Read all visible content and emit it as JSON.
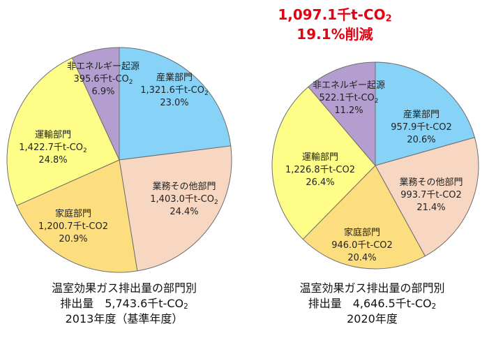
{
  "headline": {
    "reduction_amount": "1,097.1千t-CO",
    "reduction_sub": "2",
    "reduction_percent": "19.1%削減"
  },
  "chart_data": [
    {
      "type": "pie",
      "caption_line1": "温室効果ガス排出量の部門別",
      "caption_line2": "排出量　5,743.6千t-CO",
      "caption_line2_sub": "2",
      "caption_line3": "2013年度（基準年度）",
      "slices": [
        {
          "name": "産業部門",
          "value": 1321.6,
          "value_label": "1,321.6千t-CO",
          "value_sub": "2",
          "percent": 23.0,
          "percent_label": "23.0%",
          "color": "#86d3f7"
        },
        {
          "name": "業務その他部門",
          "value": 1403.0,
          "value_label": "1,403.0千t-CO",
          "value_sub": "2",
          "percent": 24.4,
          "percent_label": "24.4%",
          "color": "#f7d6c2"
        },
        {
          "name": "家庭部門",
          "value": 1200.7,
          "value_label": "1,200.7千t-CO2",
          "value_sub": "",
          "percent": 20.9,
          "percent_label": "20.9%",
          "color": "#fdde7e"
        },
        {
          "name": "運輸部門",
          "value": 1422.7,
          "value_label": "1,422.7千t-CO",
          "value_sub": "2",
          "percent": 24.8,
          "percent_label": "24.8%",
          "color": "#fdfd88"
        },
        {
          "name": "非エネルギー起源",
          "value": 395.6,
          "value_label": "395.6千t-CO",
          "value_sub": "2",
          "percent": 6.9,
          "percent_label": "6.9%",
          "color": "#b49ed0"
        }
      ]
    },
    {
      "type": "pie",
      "caption_line1": "温室効果ガス排出量の部門別",
      "caption_line2": "排出量　4,646.5千t-CO",
      "caption_line2_sub": "2",
      "caption_line3": "2020年度",
      "slices": [
        {
          "name": "産業部門",
          "value": 957.9,
          "value_label": "957.9千t-CO2",
          "value_sub": "",
          "percent": 20.6,
          "percent_label": "20.6%",
          "color": "#86d3f7"
        },
        {
          "name": "業務その他部門",
          "value": 993.7,
          "value_label": "993.7千t-CO2",
          "value_sub": "",
          "percent": 21.4,
          "percent_label": "21.4%",
          "color": "#f7d6c2"
        },
        {
          "name": "家庭部門",
          "value": 946.0,
          "value_label": "946.0千t-CO2",
          "value_sub": "",
          "percent": 20.4,
          "percent_label": "20.4%",
          "color": "#fdde7e"
        },
        {
          "name": "運輸部門",
          "value": 1226.8,
          "value_label": "1,226.8千t-CO2",
          "value_sub": "",
          "percent": 26.4,
          "percent_label": "26.4%",
          "color": "#fdfd88"
        },
        {
          "name": "非エネルギー起源",
          "value": 522.1,
          "value_label": "522.1千t-CO",
          "value_sub": "2",
          "percent": 11.2,
          "percent_label": "11.2%",
          "color": "#b49ed0"
        }
      ]
    }
  ]
}
